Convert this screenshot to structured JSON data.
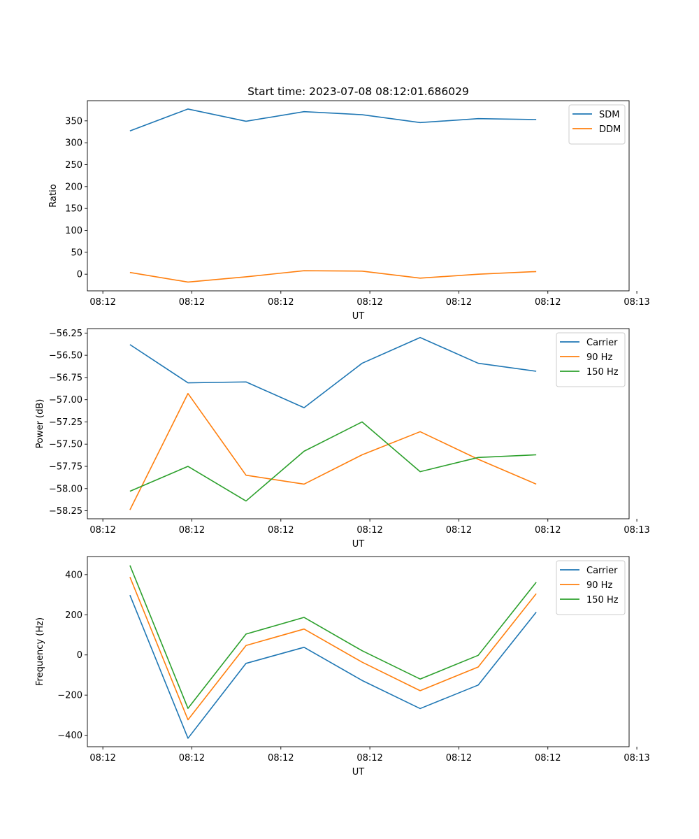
{
  "chart_data": [
    {
      "type": "line",
      "title": "Start time: 2023-07-08 08:12:01.686029",
      "xlabel": "UT",
      "ylabel": "Ratio",
      "x": [
        0.35,
        1.1,
        1.85,
        2.6,
        3.35,
        4.1,
        4.85,
        5.6
      ],
      "xlim": [
        -0.2,
        6.8
      ],
      "x_ticks": [
        0,
        1.15,
        2.3,
        3.45,
        4.6,
        5.75,
        6.9
      ],
      "x_tick_labels": [
        "08:12",
        "08:12",
        "08:12",
        "08:12",
        "08:12",
        "08:12",
        "08:13"
      ],
      "ylim": [
        -38,
        396
      ],
      "y_ticks": [
        0,
        50,
        100,
        150,
        200,
        250,
        300,
        350
      ],
      "y_tick_labels": [
        "0",
        "50",
        "100",
        "150",
        "200",
        "250",
        "300",
        "350"
      ],
      "legend_position": "top-right",
      "series": [
        {
          "name": "SDM",
          "color": "#1f77b4",
          "values": [
            327,
            377,
            349,
            371,
            364,
            346,
            355,
            353
          ]
        },
        {
          "name": "DDM",
          "color": "#ff7f0e",
          "values": [
            4,
            -18,
            -6,
            8,
            7,
            -9,
            0,
            6
          ]
        }
      ]
    },
    {
      "type": "line",
      "title": "",
      "xlabel": "UT",
      "ylabel": "Power (dB)",
      "x": [
        0.35,
        1.1,
        1.85,
        2.6,
        3.35,
        4.1,
        4.85,
        5.6
      ],
      "xlim": [
        -0.2,
        6.8
      ],
      "x_ticks": [
        0,
        1.15,
        2.3,
        3.45,
        4.6,
        5.75,
        6.9
      ],
      "x_tick_labels": [
        "08:12",
        "08:12",
        "08:12",
        "08:12",
        "08:12",
        "08:12",
        "08:13"
      ],
      "ylim": [
        -58.34,
        -56.2
      ],
      "y_ticks": [
        -58.25,
        -58.0,
        -57.75,
        -57.5,
        -57.25,
        -57.0,
        -56.75,
        -56.5,
        -56.25
      ],
      "y_tick_labels": [
        "−58.25",
        "−58.00",
        "−57.75",
        "−57.50",
        "−57.25",
        "−57.00",
        "−56.75",
        "−56.50",
        "−56.25"
      ],
      "legend_position": "top-right",
      "series": [
        {
          "name": "Carrier",
          "color": "#1f77b4",
          "values": [
            -56.38,
            -56.81,
            -56.8,
            -57.09,
            -56.59,
            -56.3,
            -56.59,
            -56.68
          ]
        },
        {
          "name": "90 Hz",
          "color": "#ff7f0e",
          "values": [
            -58.24,
            -56.93,
            -57.85,
            -57.95,
            -57.62,
            -57.36,
            -57.67,
            -57.95
          ]
        },
        {
          "name": "150 Hz",
          "color": "#2ca02c",
          "values": [
            -58.03,
            -57.75,
            -58.14,
            -57.58,
            -57.25,
            -57.81,
            -57.65,
            -57.62
          ]
        }
      ]
    },
    {
      "type": "line",
      "title": "",
      "xlabel": "UT",
      "ylabel": "Frequency (Hz)",
      "x": [
        0.35,
        1.1,
        1.85,
        2.6,
        3.35,
        4.1,
        4.85,
        5.6
      ],
      "xlim": [
        -0.2,
        6.8
      ],
      "x_ticks": [
        0,
        1.15,
        2.3,
        3.45,
        4.6,
        5.75,
        6.9
      ],
      "x_tick_labels": [
        "08:12",
        "08:12",
        "08:12",
        "08:12",
        "08:12",
        "08:12",
        "08:13"
      ],
      "ylim": [
        -457,
        490
      ],
      "y_ticks": [
        -400,
        -200,
        0,
        200,
        400
      ],
      "y_tick_labels": [
        "−400",
        "−200",
        "0",
        "200",
        "400"
      ],
      "legend_position": "top-right",
      "series": [
        {
          "name": "Carrier",
          "color": "#1f77b4",
          "values": [
            298,
            -415,
            -42,
            38,
            -127,
            -267,
            -150,
            213
          ]
        },
        {
          "name": "90 Hz",
          "color": "#ff7f0e",
          "values": [
            388,
            -323,
            47,
            129,
            -36,
            -178,
            -60,
            305
          ]
        },
        {
          "name": "150 Hz",
          "color": "#2ca02c",
          "values": [
            446,
            -266,
            104,
            187,
            21,
            -120,
            -2,
            362
          ]
        }
      ]
    }
  ]
}
